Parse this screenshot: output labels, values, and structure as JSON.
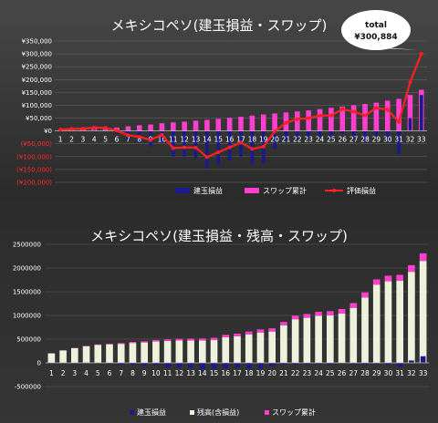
{
  "chart_data": [
    {
      "type": "bar",
      "title": "メキシコペソ(建玉損益・スワップ)",
      "categories": [
        "1",
        "2",
        "3",
        "4",
        "5",
        "6",
        "7",
        "8",
        "9",
        "10",
        "11",
        "12",
        "13",
        "14",
        "15",
        "16",
        "17",
        "18",
        "19",
        "20",
        "21",
        "22",
        "23",
        "24",
        "25",
        "26",
        "27",
        "28",
        "29",
        "30",
        "31",
        "32",
        "33"
      ],
      "ylim": [
        -200000,
        350000
      ],
      "yticks": [
        "¥350,000",
        "¥300,000",
        "¥250,000",
        "¥200,000",
        "¥150,000",
        "¥100,000",
        "¥50,000",
        "¥0",
        "(¥50,000)",
        "(¥100,000)",
        "(¥150,000)",
        "(¥200,000)"
      ],
      "ytick_values": [
        350000,
        300000,
        250000,
        200000,
        150000,
        100000,
        50000,
        0,
        -50000,
        -100000,
        -150000,
        -200000
      ],
      "grid": true,
      "legend_position": "bottom",
      "colors": {
        "position_pl": "#1a1a8c",
        "swap": "#ff3fcf",
        "valuation": "#ff2020",
        "negative_tick": "#ff2a2a"
      },
      "series": [
        {
          "name": "建玉損益",
          "kind": "bar",
          "values": [
            2000,
            3000,
            2000,
            4000,
            2000,
            -12000,
            -35000,
            -45000,
            -60000,
            -45000,
            -100000,
            -100000,
            -105000,
            -145000,
            -130000,
            -115000,
            -100000,
            -130000,
            -125000,
            -70000,
            -40000,
            -30000,
            -30000,
            -25000,
            -30000,
            -10000,
            -25000,
            -45000,
            -20000,
            -35000,
            -90000,
            50000,
            140000
          ]
        },
        {
          "name": "スワップ累計",
          "kind": "bar",
          "values": [
            3000,
            5000,
            7000,
            9000,
            10000,
            13000,
            18000,
            22000,
            25000,
            30000,
            33000,
            36000,
            40000,
            43000,
            47000,
            51000,
            55000,
            60000,
            64000,
            68000,
            72000,
            76000,
            80000,
            85000,
            90000,
            95000,
            100000,
            105000,
            110000,
            118000,
            125000,
            140000,
            160000
          ]
        },
        {
          "name": "評価損益",
          "kind": "line",
          "values": [
            5000,
            8000,
            9000,
            13000,
            12000,
            1000,
            -17000,
            -23000,
            -35000,
            -15000,
            -67000,
            -64000,
            -65000,
            -102000,
            -83000,
            -64000,
            -45000,
            -70000,
            -61000,
            -2000,
            32000,
            46000,
            50000,
            60000,
            60000,
            85000,
            75000,
            60000,
            90000,
            83000,
            35000,
            190000,
            300884
          ]
        }
      ],
      "annotation": {
        "label": "total",
        "value": "¥300,884"
      }
    },
    {
      "type": "bar",
      "title": "メキシコペソ(建玉損益・残高・スワップ)",
      "categories": [
        "1",
        "2",
        "3",
        "4",
        "5",
        "6",
        "7",
        "8",
        "9",
        "10",
        "11",
        "12",
        "13",
        "14",
        "15",
        "16",
        "17",
        "18",
        "19",
        "20",
        "21",
        "22",
        "23",
        "24",
        "25",
        "26",
        "27",
        "28",
        "29",
        "30",
        "31",
        "32",
        "33"
      ],
      "ylim": [
        -500000,
        2500000
      ],
      "yticks": [
        "2500000",
        "2000000",
        "1500000",
        "1000000",
        "500000",
        "0",
        "-500000"
      ],
      "ytick_values": [
        2500000,
        2000000,
        1500000,
        1000000,
        500000,
        0,
        -500000
      ],
      "grid": true,
      "legend_position": "bottom",
      "colors": {
        "position_pl": "#1a1a8c",
        "balance": "#eef2dc",
        "swap": "#ff3fcf"
      },
      "series": [
        {
          "name": "建玉損益",
          "kind": "bar",
          "values": [
            2000,
            3000,
            2000,
            4000,
            2000,
            -12000,
            -35000,
            -45000,
            -60000,
            -45000,
            -100000,
            -100000,
            -105000,
            -145000,
            -130000,
            -115000,
            -100000,
            -130000,
            -125000,
            -70000,
            -40000,
            -30000,
            -30000,
            -25000,
            -30000,
            -10000,
            -25000,
            -45000,
            -20000,
            -35000,
            -90000,
            50000,
            140000
          ]
        },
        {
          "name": "残高(含損益)",
          "kind": "bar",
          "values": [
            200000,
            260000,
            310000,
            350000,
            380000,
            390000,
            400000,
            420000,
            430000,
            450000,
            460000,
            470000,
            470000,
            470000,
            480000,
            540000,
            560000,
            600000,
            640000,
            660000,
            790000,
            920000,
            950000,
            990000,
            1000000,
            1040000,
            1160000,
            1380000,
            1650000,
            1720000,
            1730000,
            1920000,
            2150000
          ]
        },
        {
          "name": "スワップ累計",
          "kind": "bar",
          "values": [
            3000,
            5000,
            7000,
            9000,
            10000,
            13000,
            18000,
            22000,
            25000,
            30000,
            33000,
            36000,
            40000,
            43000,
            47000,
            51000,
            55000,
            60000,
            64000,
            68000,
            72000,
            76000,
            80000,
            85000,
            90000,
            95000,
            100000,
            105000,
            110000,
            118000,
            125000,
            140000,
            160000
          ]
        }
      ]
    }
  ]
}
